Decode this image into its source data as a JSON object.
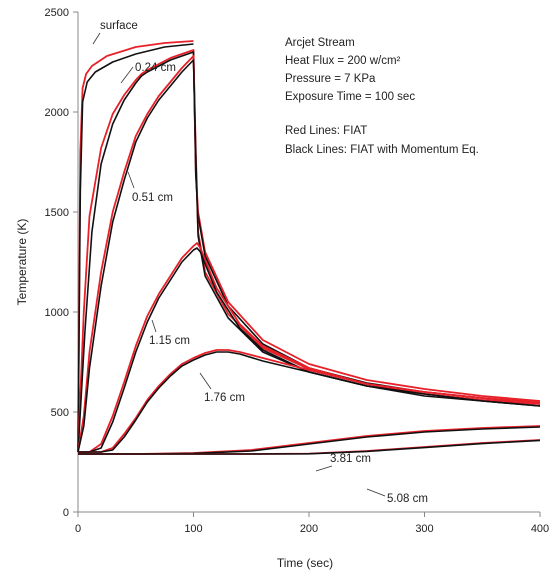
{
  "chart_data": {
    "type": "line",
    "title": "",
    "xlabel": "Time (sec)",
    "ylabel": "Temperature (K)",
    "xlim": [
      0,
      400
    ],
    "ylim": [
      0,
      2500
    ],
    "x_ticks": [
      0,
      100,
      200,
      300,
      400
    ],
    "y_ticks": [
      0,
      500,
      1000,
      1500,
      2000,
      2500
    ],
    "grid": false,
    "annotations": [
      "Arcjet Stream",
      "Heat Flux = 200 w/cm²",
      "Pressure = 7 KPa",
      "Exposure Time = 100 sec",
      "Red Lines: FIAT",
      "Black Lines: FIAT with Momentum Eq."
    ],
    "series_colors": {
      "fiat": "#e8202a",
      "momentum": "#111111"
    },
    "curves": [
      {
        "label": "surface",
        "fiat": [
          [
            0,
            300
          ],
          [
            2,
            1800
          ],
          [
            4,
            2120
          ],
          [
            7,
            2190
          ],
          [
            12,
            2230
          ],
          [
            25,
            2280
          ],
          [
            50,
            2325
          ],
          [
            75,
            2345
          ],
          [
            100,
            2355
          ]
        ],
        "momentum": [
          [
            0,
            300
          ],
          [
            2,
            1600
          ],
          [
            4,
            2050
          ],
          [
            8,
            2150
          ],
          [
            15,
            2200
          ],
          [
            30,
            2250
          ],
          [
            50,
            2290
          ],
          [
            75,
            2325
          ],
          [
            100,
            2340
          ]
        ]
      },
      {
        "label": "0.24 cm",
        "fiat": [
          [
            0,
            300
          ],
          [
            5,
            1000
          ],
          [
            10,
            1480
          ],
          [
            20,
            1820
          ],
          [
            30,
            1990
          ],
          [
            40,
            2085
          ],
          [
            50,
            2160
          ],
          [
            55,
            2190
          ],
          [
            60,
            2210
          ],
          [
            80,
            2270
          ],
          [
            100,
            2310
          ],
          [
            102,
            1700
          ],
          [
            104,
            1500
          ],
          [
            110,
            1300
          ],
          [
            130,
            1050
          ],
          [
            160,
            860
          ],
          [
            200,
            740
          ],
          [
            250,
            660
          ],
          [
            300,
            615
          ],
          [
            350,
            580
          ],
          [
            400,
            555
          ]
        ],
        "momentum": [
          [
            0,
            300
          ],
          [
            6,
            900
          ],
          [
            12,
            1400
          ],
          [
            20,
            1740
          ],
          [
            30,
            1940
          ],
          [
            40,
            2060
          ],
          [
            50,
            2145
          ],
          [
            55,
            2180
          ],
          [
            60,
            2200
          ],
          [
            80,
            2260
          ],
          [
            100,
            2300
          ],
          [
            102,
            1680
          ],
          [
            104,
            1480
          ],
          [
            110,
            1280
          ],
          [
            130,
            1030
          ],
          [
            160,
            840
          ],
          [
            200,
            720
          ],
          [
            250,
            645
          ],
          [
            300,
            600
          ],
          [
            350,
            570
          ],
          [
            400,
            545
          ]
        ]
      },
      {
        "label": "0.51 cm",
        "fiat": [
          [
            0,
            300
          ],
          [
            5,
            480
          ],
          [
            10,
            800
          ],
          [
            20,
            1200
          ],
          [
            30,
            1500
          ],
          [
            40,
            1700
          ],
          [
            50,
            1880
          ],
          [
            60,
            1990
          ],
          [
            70,
            2080
          ],
          [
            80,
            2150
          ],
          [
            90,
            2220
          ],
          [
            100,
            2280
          ],
          [
            102,
            1800
          ],
          [
            104,
            1400
          ],
          [
            110,
            1200
          ],
          [
            130,
            990
          ],
          [
            160,
            820
          ],
          [
            200,
            715
          ],
          [
            250,
            640
          ],
          [
            300,
            600
          ],
          [
            350,
            570
          ],
          [
            400,
            550
          ]
        ],
        "momentum": [
          [
            0,
            300
          ],
          [
            5,
            430
          ],
          [
            10,
            720
          ],
          [
            20,
            1130
          ],
          [
            30,
            1450
          ],
          [
            40,
            1660
          ],
          [
            50,
            1850
          ],
          [
            60,
            1970
          ],
          [
            70,
            2060
          ],
          [
            80,
            2130
          ],
          [
            90,
            2200
          ],
          [
            100,
            2260
          ],
          [
            102,
            1780
          ],
          [
            104,
            1380
          ],
          [
            110,
            1180
          ],
          [
            130,
            970
          ],
          [
            160,
            800
          ],
          [
            200,
            700
          ],
          [
            250,
            630
          ],
          [
            300,
            590
          ],
          [
            350,
            560
          ],
          [
            400,
            540
          ]
        ]
      },
      {
        "label": "1.15 cm",
        "fiat": [
          [
            0,
            300
          ],
          [
            10,
            300
          ],
          [
            20,
            340
          ],
          [
            30,
            480
          ],
          [
            40,
            650
          ],
          [
            50,
            830
          ],
          [
            60,
            980
          ],
          [
            70,
            1090
          ],
          [
            80,
            1180
          ],
          [
            90,
            1270
          ],
          [
            100,
            1330
          ],
          [
            103,
            1345
          ],
          [
            106,
            1320
          ],
          [
            110,
            1260
          ],
          [
            120,
            1120
          ],
          [
            140,
            940
          ],
          [
            160,
            830
          ],
          [
            200,
            720
          ],
          [
            250,
            640
          ],
          [
            300,
            590
          ],
          [
            350,
            560
          ],
          [
            400,
            540
          ]
        ],
        "momentum": [
          [
            0,
            300
          ],
          [
            10,
            300
          ],
          [
            20,
            320
          ],
          [
            30,
            450
          ],
          [
            40,
            620
          ],
          [
            50,
            800
          ],
          [
            60,
            950
          ],
          [
            70,
            1070
          ],
          [
            80,
            1160
          ],
          [
            90,
            1250
          ],
          [
            100,
            1310
          ],
          [
            103,
            1320
          ],
          [
            106,
            1300
          ],
          [
            110,
            1240
          ],
          [
            120,
            1100
          ],
          [
            140,
            920
          ],
          [
            160,
            810
          ],
          [
            200,
            700
          ],
          [
            250,
            630
          ],
          [
            300,
            580
          ],
          [
            350,
            555
          ],
          [
            400,
            530
          ]
        ]
      },
      {
        "label": "1.76 cm",
        "fiat": [
          [
            0,
            300
          ],
          [
            20,
            300
          ],
          [
            30,
            320
          ],
          [
            40,
            390
          ],
          [
            50,
            470
          ],
          [
            60,
            560
          ],
          [
            70,
            630
          ],
          [
            80,
            690
          ],
          [
            90,
            740
          ],
          [
            100,
            770
          ],
          [
            110,
            795
          ],
          [
            120,
            810
          ],
          [
            130,
            810
          ],
          [
            140,
            800
          ],
          [
            160,
            770
          ],
          [
            200,
            710
          ],
          [
            250,
            640
          ],
          [
            300,
            600
          ],
          [
            350,
            570
          ],
          [
            400,
            545
          ]
        ],
        "momentum": [
          [
            0,
            300
          ],
          [
            20,
            300
          ],
          [
            30,
            310
          ],
          [
            40,
            375
          ],
          [
            50,
            460
          ],
          [
            60,
            550
          ],
          [
            70,
            620
          ],
          [
            80,
            680
          ],
          [
            90,
            730
          ],
          [
            100,
            760
          ],
          [
            110,
            785
          ],
          [
            120,
            800
          ],
          [
            130,
            800
          ],
          [
            140,
            790
          ],
          [
            160,
            755
          ],
          [
            200,
            700
          ],
          [
            250,
            630
          ],
          [
            300,
            590
          ],
          [
            350,
            555
          ],
          [
            400,
            530
          ]
        ]
      },
      {
        "label": "3.81 cm",
        "fiat": [
          [
            0,
            290
          ],
          [
            50,
            290
          ],
          [
            100,
            295
          ],
          [
            150,
            310
          ],
          [
            200,
            345
          ],
          [
            250,
            380
          ],
          [
            300,
            405
          ],
          [
            350,
            420
          ],
          [
            400,
            430
          ]
        ],
        "momentum": [
          [
            0,
            290
          ],
          [
            50,
            290
          ],
          [
            100,
            293
          ],
          [
            150,
            305
          ],
          [
            200,
            340
          ],
          [
            250,
            375
          ],
          [
            300,
            400
          ],
          [
            350,
            415
          ],
          [
            400,
            425
          ]
        ]
      },
      {
        "label": "5.08 cm",
        "fiat": [
          [
            0,
            290
          ],
          [
            100,
            290
          ],
          [
            150,
            290
          ],
          [
            200,
            292
          ],
          [
            250,
            305
          ],
          [
            300,
            325
          ],
          [
            350,
            345
          ],
          [
            400,
            360
          ]
        ],
        "momentum": [
          [
            0,
            290
          ],
          [
            100,
            290
          ],
          [
            150,
            290
          ],
          [
            200,
            291
          ],
          [
            250,
            303
          ],
          [
            300,
            322
          ],
          [
            350,
            342
          ],
          [
            400,
            358
          ]
        ]
      }
    ]
  }
}
